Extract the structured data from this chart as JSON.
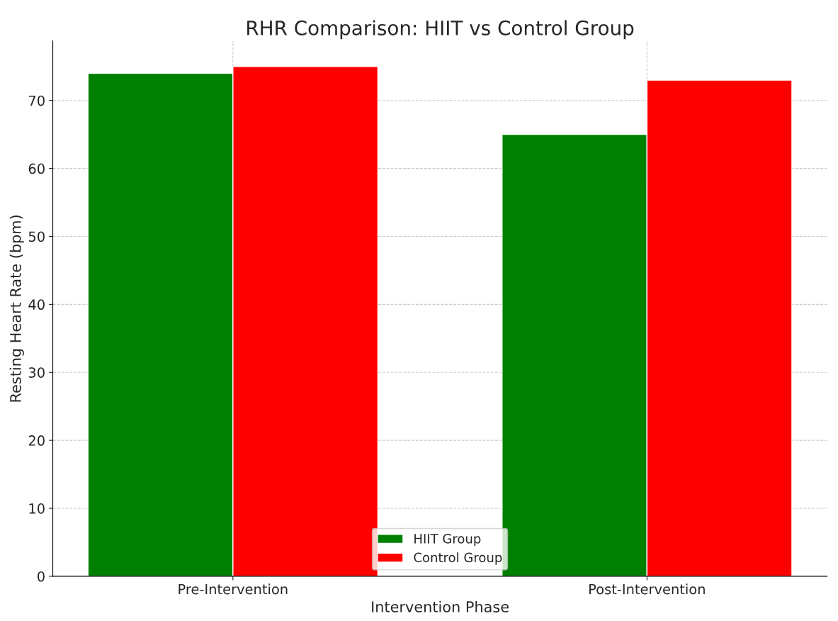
{
  "chart_data": {
    "type": "bar",
    "title": "RHR Comparison: HIIT vs Control Group",
    "xlabel": "Intervention Phase",
    "ylabel": "Resting Heart Rate (bpm)",
    "categories": [
      "Pre-Intervention",
      "Post-Intervention"
    ],
    "series": [
      {
        "name": "HIIT Group",
        "color": "#008000",
        "values": [
          74,
          65
        ]
      },
      {
        "name": "Control Group",
        "color": "#ff0000",
        "values": [
          75,
          73
        ]
      }
    ],
    "ylim": [
      0,
      78.75
    ],
    "yticks": [
      0,
      10,
      20,
      30,
      40,
      50,
      60,
      70
    ],
    "grid": true,
    "legend": "bottom"
  }
}
